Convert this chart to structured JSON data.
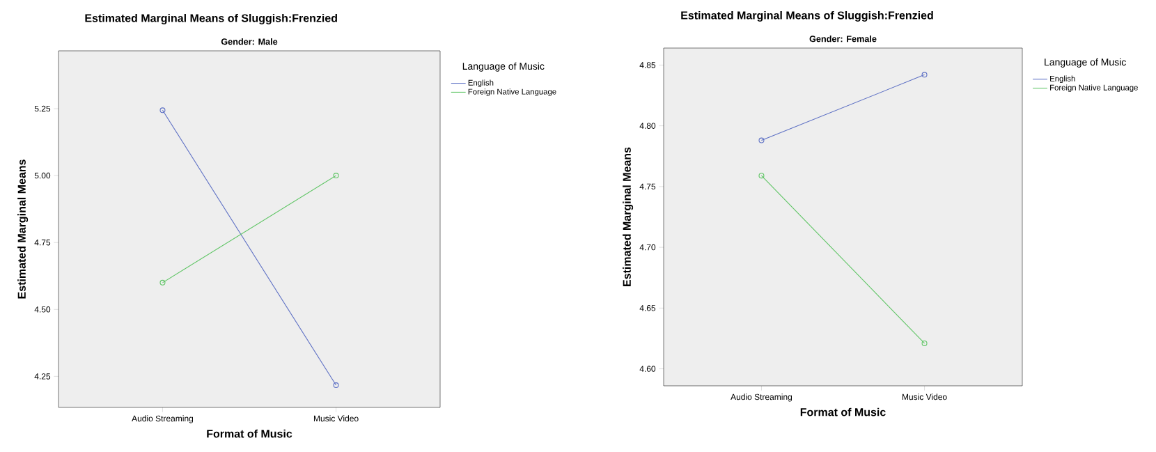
{
  "chart_data": [
    {
      "type": "line",
      "title": "Estimated Marginal Means of Sluggish:Frenzied",
      "subtitle": "Gender: Male",
      "xlabel": "Format of Music",
      "ylabel": "Estimated Marginal Means",
      "legend_title": "Language of Music",
      "legend": "right",
      "marker": "circle",
      "categories": [
        "Audio Streaming",
        "Music Video"
      ],
      "series": [
        {
          "name": "English",
          "color": "#5c6fc4",
          "values": [
            5.244,
            4.217
          ]
        },
        {
          "name": "Foreign Native Language",
          "color": "#5cc462",
          "values": [
            4.6,
            5.0
          ]
        }
      ],
      "ylim": [
        4.134,
        5.466
      ],
      "yticks": [
        4.25,
        {
          "value": 4.5,
          "label": "4.50"
        },
        4.75,
        {
          "value": 5,
          "label": "5.00"
        },
        5.25
      ]
    },
    {
      "type": "line",
      "title": "Estimated Marginal Means of Sluggish:Frenzied",
      "subtitle": "Gender: Female",
      "xlabel": "Format of Music",
      "ylabel": "Estimated Marginal Means",
      "legend_title": "Language of Music",
      "legend": "right",
      "marker": "circle",
      "categories": [
        "Audio Streaming",
        "Music Video"
      ],
      "series": [
        {
          "name": "English",
          "color": "#5c6fc4",
          "values": [
            4.788,
            4.842
          ]
        },
        {
          "name": "Foreign Native Language",
          "color": "#5cc462",
          "values": [
            4.759,
            4.621
          ]
        }
      ],
      "ylim": [
        4.586,
        4.864
      ],
      "yticks": [
        {
          "value": 4.6,
          "label": "4.60"
        },
        4.65,
        {
          "value": 4.7,
          "label": "4.70"
        },
        4.75,
        {
          "value": 4.8,
          "label": "4.80"
        },
        4.85
      ]
    }
  ]
}
